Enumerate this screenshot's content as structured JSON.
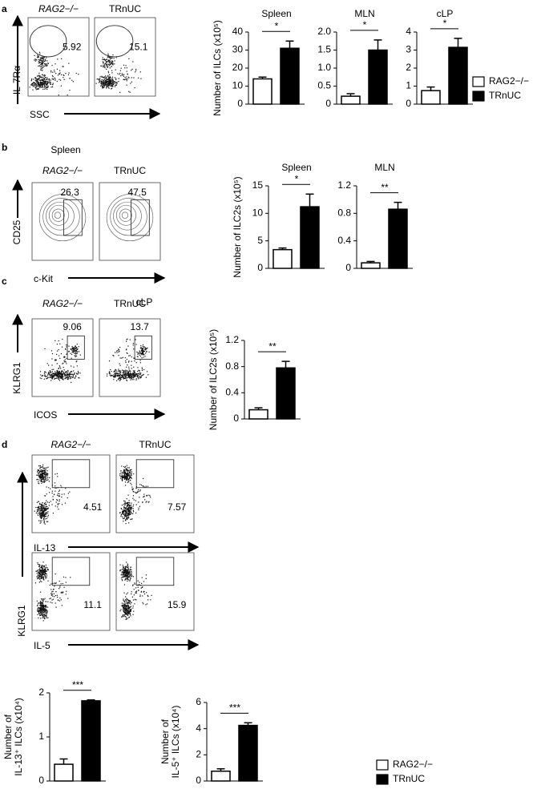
{
  "panel_labels": [
    "a",
    "b",
    "c",
    "d"
  ],
  "flow": {
    "a": {
      "samples": [
        "RAG2−/−",
        "TRnUC"
      ],
      "ylabel": "IL-7Rα",
      "rows": [
        {
          "xlabel": "SSC",
          "gates": [
            5.92,
            15.1
          ]
        }
      ]
    },
    "b": {
      "title": "Spleen",
      "samples": [
        "RAG2−/−",
        "TRnUC"
      ],
      "ylabel": "CD25",
      "rows": [
        {
          "xlabel": "c-Kit",
          "gates": [
            26.3,
            47.5
          ]
        }
      ]
    },
    "c": {
      "title": "cLP",
      "samples": [
        "RAG2−/−",
        "TRnUC"
      ],
      "ylabel": "KLRG1",
      "rows": [
        {
          "xlabel": "ICOS",
          "gates": [
            9.06,
            13.7
          ]
        }
      ]
    },
    "d": {
      "samples": [
        "RAG2−/−",
        "TRnUC"
      ],
      "ylabel": "KLRG1",
      "rows": [
        {
          "xlabel": "IL-13",
          "gates": [
            4.51,
            7.57
          ]
        },
        {
          "xlabel": "IL-5",
          "gates": [
            11.1,
            15.9
          ]
        }
      ]
    }
  },
  "chart_data": [
    {
      "type": "bar",
      "title": "Spleen",
      "ylabel": "Number of ILCs (x10⁵)",
      "significance": "*",
      "ylim": [
        0,
        40
      ],
      "yticks": [
        0,
        10,
        20,
        30,
        40
      ],
      "series": [
        {
          "name": "RAG2−/−",
          "color": "#ffffff",
          "values": [
            14
          ],
          "errors": [
            1
          ]
        },
        {
          "name": "TRnUC",
          "color": "#000000",
          "values": [
            31
          ],
          "errors": [
            4
          ]
        }
      ]
    },
    {
      "type": "bar",
      "title": "MLN",
      "significance": "*",
      "ylim": [
        0,
        2
      ],
      "yticks": [
        0,
        0.5,
        {
          "value": 1,
          "label": "1.0"
        },
        1.5,
        {
          "value": 2,
          "label": "2.0"
        }
      ],
      "series": [
        {
          "name": "RAG2−/−",
          "color": "#ffffff",
          "values": [
            0.22
          ],
          "errors": [
            0.07
          ]
        },
        {
          "name": "TRnUC",
          "color": "#000000",
          "values": [
            1.5
          ],
          "errors": [
            0.28
          ]
        }
      ]
    },
    {
      "type": "bar",
      "title": "cLP",
      "significance": "*",
      "ylim": [
        0,
        4
      ],
      "yticks": [
        0,
        1,
        2,
        3,
        4
      ],
      "series": [
        {
          "name": "RAG2−/−",
          "color": "#ffffff",
          "values": [
            0.75
          ],
          "errors": [
            0.2
          ]
        },
        {
          "name": "TRnUC",
          "color": "#000000",
          "values": [
            3.15
          ],
          "errors": [
            0.5
          ]
        }
      ]
    },
    {
      "type": "bar",
      "title": "Spleen",
      "ylabel": "Number of ILC2s (x10⁵)",
      "significance": "*",
      "ylim": [
        0,
        15
      ],
      "yticks": [
        0,
        5,
        10,
        15
      ],
      "series": [
        {
          "name": "RAG2−/−",
          "color": "#ffffff",
          "values": [
            3.4
          ],
          "errors": [
            0.3
          ]
        },
        {
          "name": "TRnUC",
          "color": "#000000",
          "values": [
            11.2
          ],
          "errors": [
            2.3
          ]
        }
      ]
    },
    {
      "type": "bar",
      "title": "MLN",
      "significance": "**",
      "ylim": [
        0,
        1.2
      ],
      "yticks": [
        0,
        0.4,
        0.8,
        1.2
      ],
      "series": [
        {
          "name": "RAG2−/−",
          "color": "#ffffff",
          "values": [
            0.08
          ],
          "errors": [
            0.02
          ]
        },
        {
          "name": "TRnUC",
          "color": "#000000",
          "values": [
            0.86
          ],
          "errors": [
            0.1
          ]
        }
      ]
    },
    {
      "type": "bar",
      "ylabel": "Number of ILC2s (x10⁵)",
      "significance": "**",
      "ylim": [
        0,
        1.2
      ],
      "yticks": [
        0,
        0.4,
        0.8,
        1.2
      ],
      "series": [
        {
          "name": "RAG2−/−",
          "color": "#ffffff",
          "values": [
            0.14
          ],
          "errors": [
            0.03
          ]
        },
        {
          "name": "TRnUC",
          "color": "#000000",
          "values": [
            0.78
          ],
          "errors": [
            0.1
          ]
        }
      ]
    },
    {
      "type": "bar",
      "ylabel": [
        "Number of",
        "IL-13⁺ ILCs (x10⁴)"
      ],
      "significance": "***",
      "ylim": [
        0,
        2
      ],
      "yticks": [
        0,
        1,
        2
      ],
      "series": [
        {
          "name": "RAG2−/−",
          "color": "#ffffff",
          "values": [
            0.38
          ],
          "errors": [
            0.12
          ]
        },
        {
          "name": "TRnUC",
          "color": "#000000",
          "values": [
            1.82
          ],
          "errors": [
            0.02
          ]
        }
      ]
    },
    {
      "type": "bar",
      "ylabel": [
        "Number of",
        "IL-5⁺ ILCs (x10⁴)"
      ],
      "significance": "***",
      "ylim": [
        0,
        6
      ],
      "yticks": [
        0,
        2,
        4,
        6
      ],
      "series": [
        {
          "name": "RAG2−/−",
          "color": "#ffffff",
          "values": [
            0.75
          ],
          "errors": [
            0.18
          ]
        },
        {
          "name": "TRnUC",
          "color": "#000000",
          "values": [
            4.25
          ],
          "errors": [
            0.2
          ]
        }
      ]
    }
  ]
}
